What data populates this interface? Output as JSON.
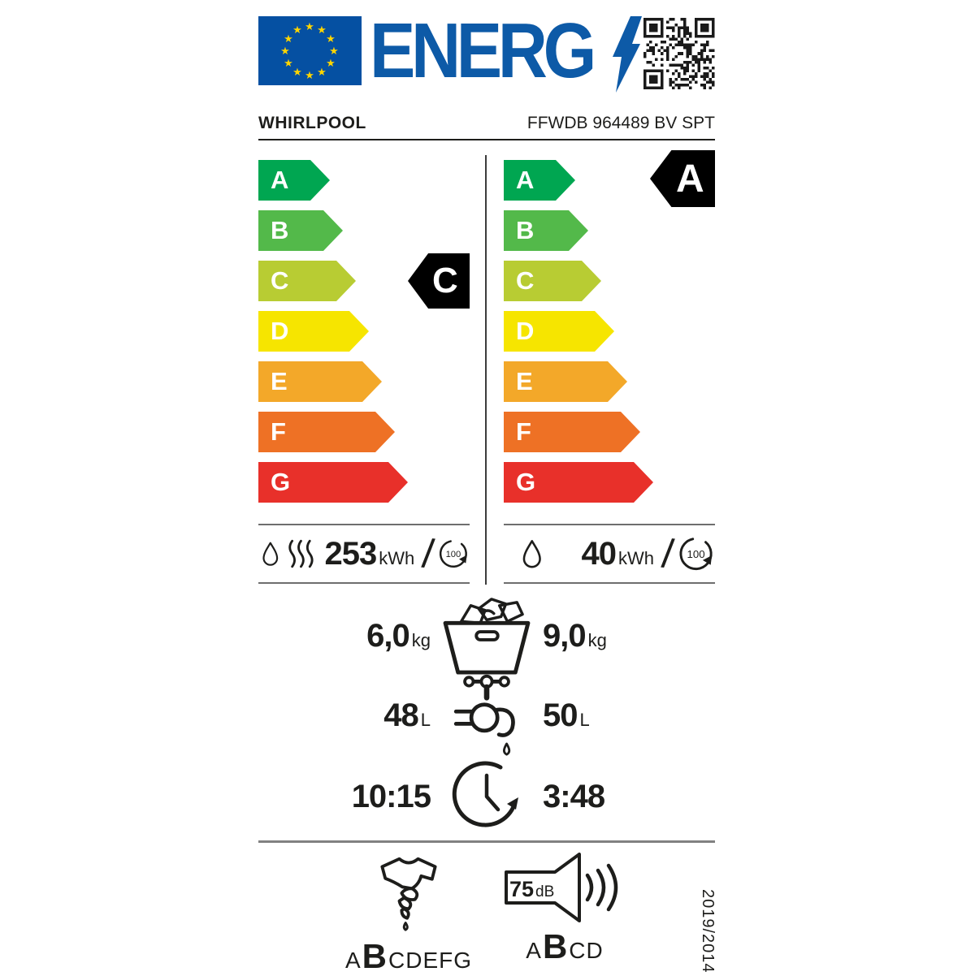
{
  "header": {
    "logo_text": "ENERG",
    "supplier": "WHIRLPOOL",
    "model": "FFWDB 964489 BV SPT"
  },
  "scale": {
    "classes": [
      {
        "label": "A",
        "color": "#00a651"
      },
      {
        "label": "B",
        "color": "#53b94a"
      },
      {
        "label": "C",
        "color": "#b8cc33"
      },
      {
        "label": "D",
        "color": "#f6e500"
      },
      {
        "label": "E",
        "color": "#f3a829"
      },
      {
        "label": "F",
        "color": "#ee7125"
      },
      {
        "label": "G",
        "color": "#e8302a"
      }
    ],
    "left_rated_class": "C",
    "right_rated_class": "A"
  },
  "consumption": {
    "left": {
      "value": "253",
      "unit": "kWh",
      "separator": "/",
      "per_cycles": "100"
    },
    "right": {
      "value": "40",
      "unit": "kWh",
      "separator": "/",
      "per_cycles": "100"
    }
  },
  "capacity": {
    "left_value": "6,0",
    "right_value": "9,0",
    "unit": "kg"
  },
  "water": {
    "left_value": "48",
    "right_value": "50",
    "unit": "L"
  },
  "duration": {
    "left_value": "10:15",
    "right_value": "3:48"
  },
  "spin": {
    "scale_before": "A",
    "rated": "B",
    "scale_after": "CDEFG"
  },
  "noise": {
    "value": "75",
    "unit": "dB",
    "scale_before": "A",
    "rated": "B",
    "scale_after": "CD"
  },
  "regulation": "2019/2014",
  "colors": {
    "eu_flag_blue": "#0550a2",
    "star_yellow": "#ffd500",
    "energ_blue": "#0d5aa7",
    "text": "#1d1d1b"
  }
}
